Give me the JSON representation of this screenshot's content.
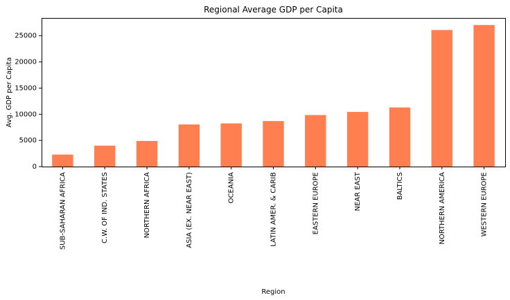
{
  "chart_data": {
    "type": "bar",
    "title": "Regional Average GDP per Capita",
    "xlabel": "Region",
    "ylabel": "Avg. GDP per Capita",
    "categories": [
      "SUB-SAHARAN AFRICA",
      "C.W. OF IND. STATES",
      "NORTHERN AFRICA",
      "ASIA (EX. NEAR EAST)",
      "OCEANIA",
      "LATIN AMER. & CARIB",
      "EASTERN EUROPE",
      "NEAR EAST",
      "BALTICS",
      "NORTHERN AMERICA",
      "WESTERN EUROPE"
    ],
    "values": [
      2300,
      4000,
      4900,
      8050,
      8250,
      8700,
      9850,
      10450,
      11300,
      26100,
      27050
    ],
    "ylim": [
      0,
      28400
    ],
    "yticks": [
      0,
      5000,
      10000,
      15000,
      20000,
      25000
    ],
    "bar_color": "#ff7f50",
    "grid": false,
    "legend": "none"
  }
}
